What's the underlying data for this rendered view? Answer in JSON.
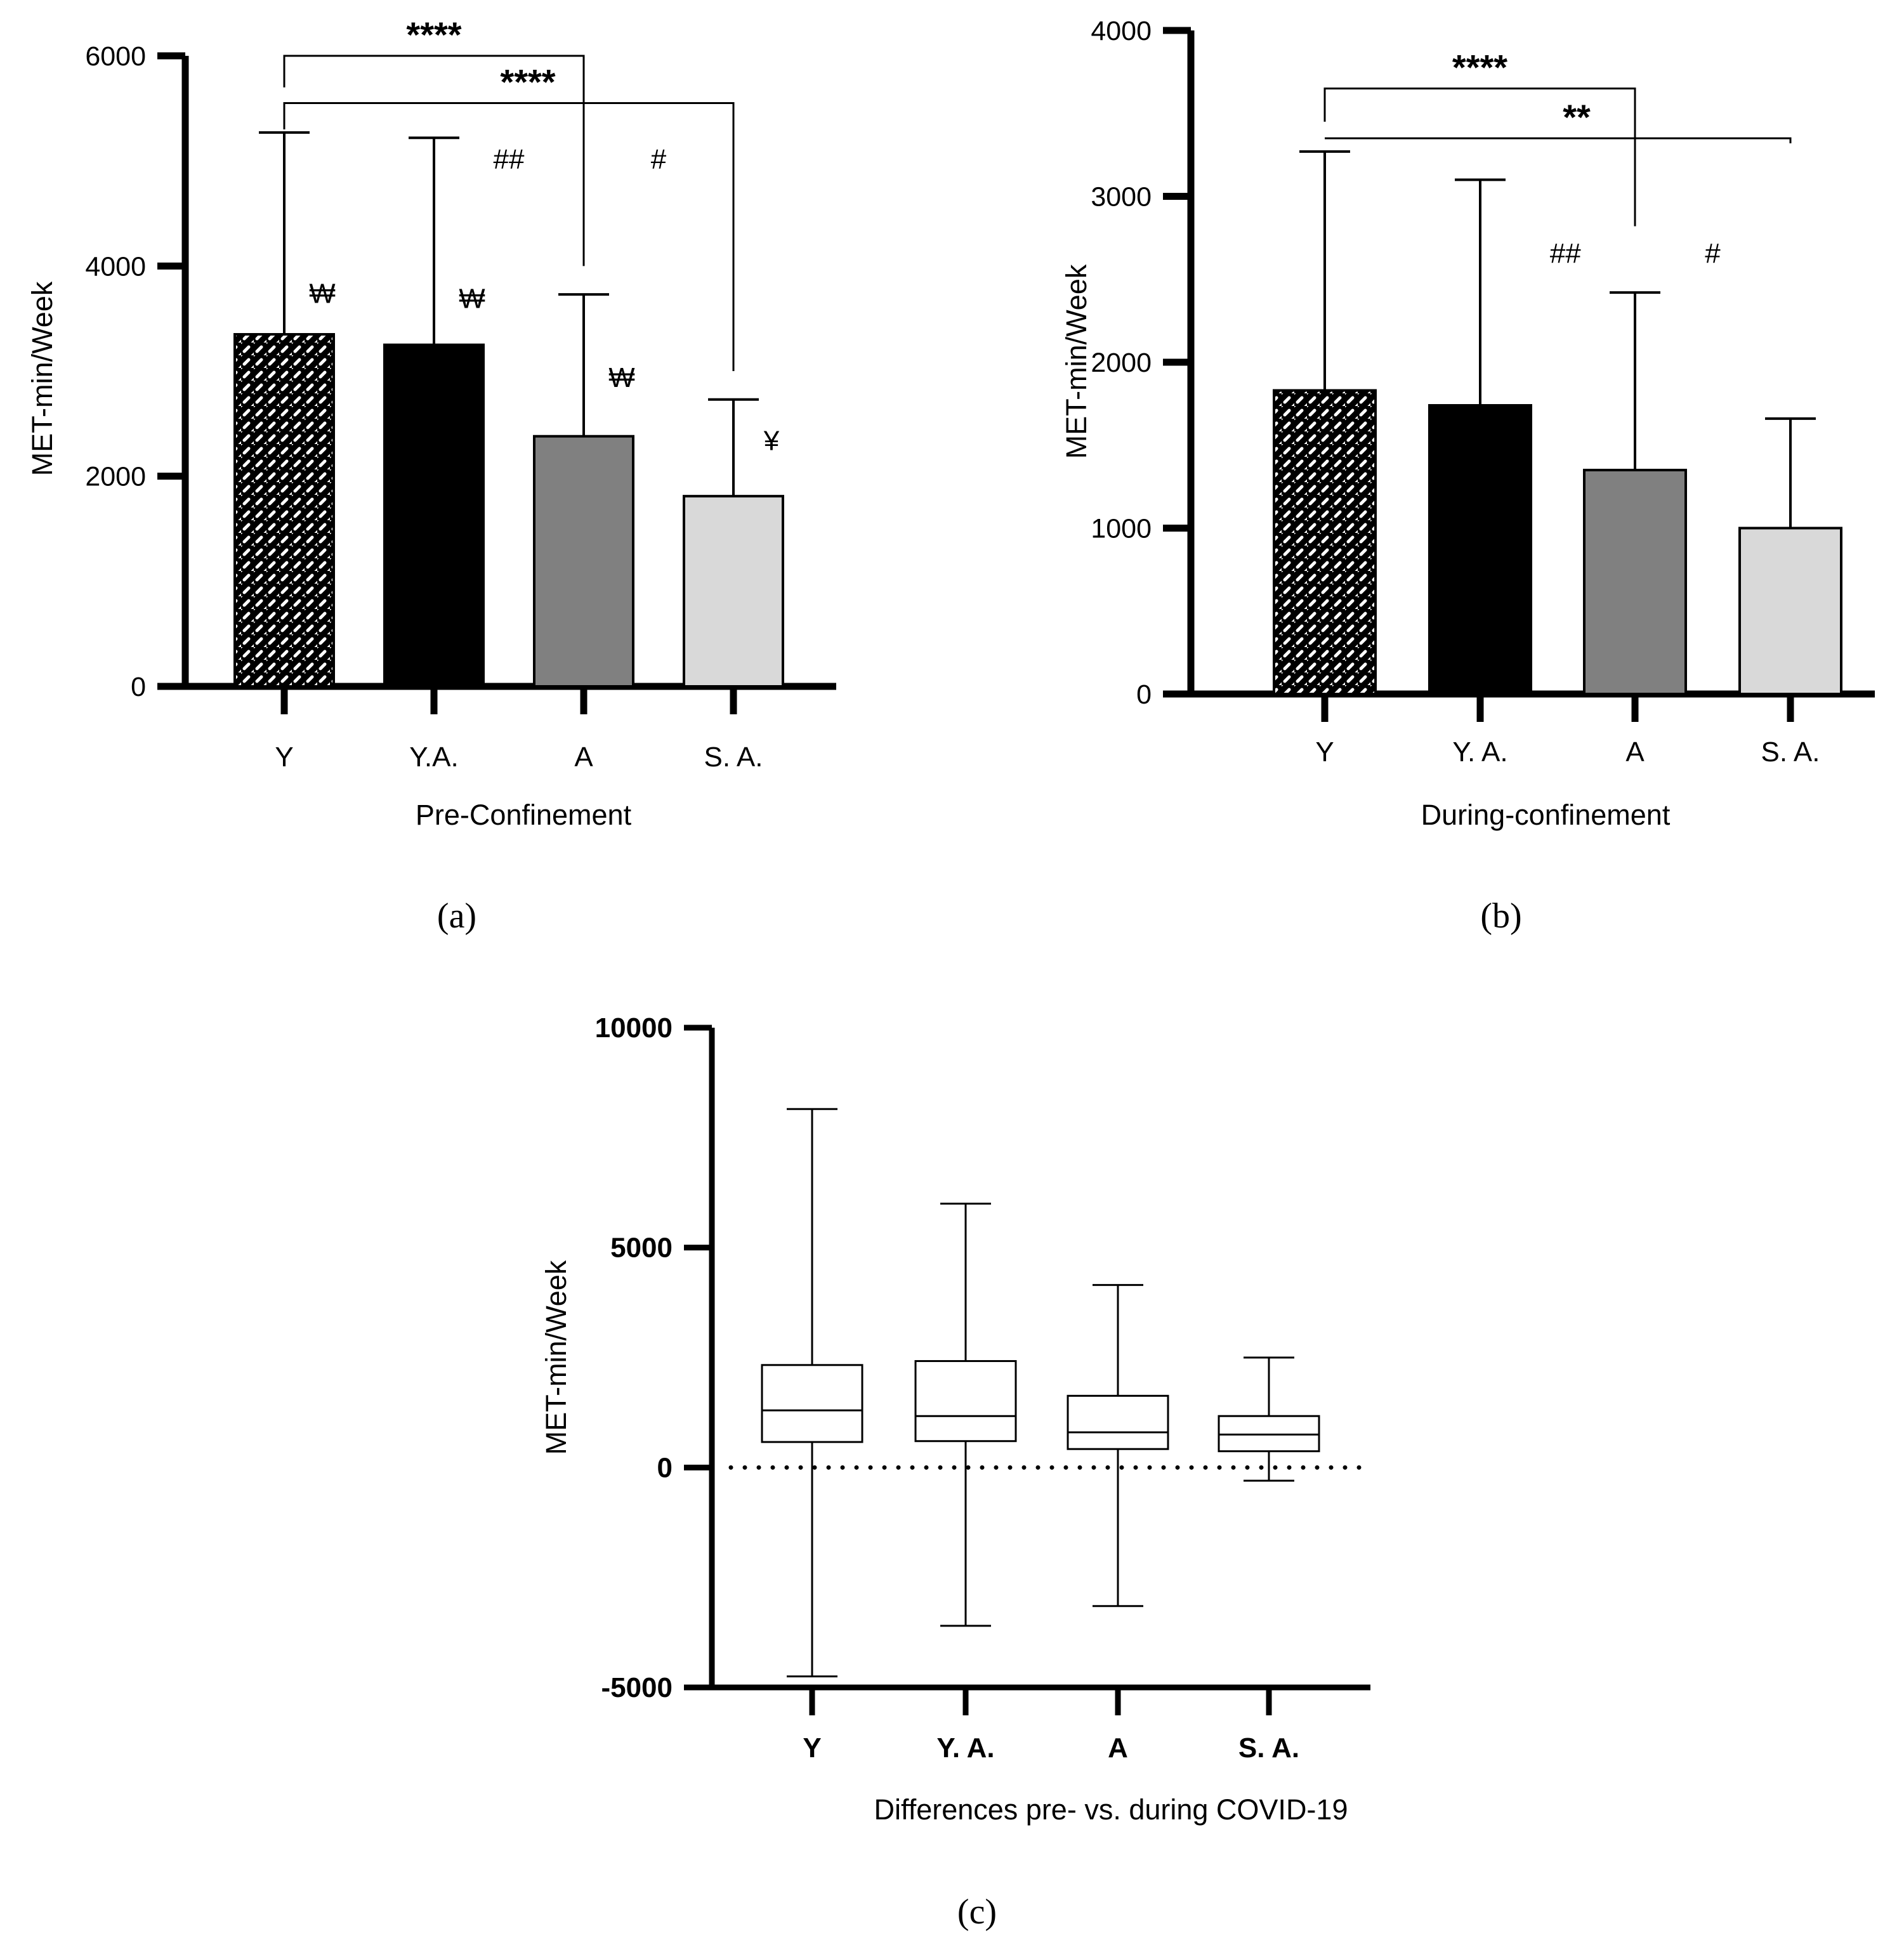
{
  "colors": {
    "axis": "#000000",
    "bar_Y_fill": "#ffffff",
    "bar_YA_fill": "#000000",
    "bar_A_fill": "#808080",
    "bar_SA_fill": "#d9d9d9",
    "box_fill": "#ffffff"
  },
  "chart_data": [
    {
      "id": "a",
      "type": "bar",
      "panel_label": "(a)",
      "xlabel": "Pre-Confinement",
      "ylabel": "MET-min/Week",
      "ylim": [
        0,
        6000
      ],
      "yticks": [
        "0",
        "2000",
        "4000",
        "6000"
      ],
      "ytick_values": [
        0,
        2000,
        4000,
        6000
      ],
      "categories": [
        "Y",
        "Y.A.",
        "A",
        "S. A."
      ],
      "values": [
        3350,
        3250,
        2380,
        1810
      ],
      "error_upper": [
        5270,
        5220,
        3730,
        2730
      ],
      "bar_styles": [
        "hatched",
        "black",
        "darkgray",
        "lightgray"
      ],
      "markers": [
        {
          "text": "₩",
          "category": 0,
          "value": 3650
        },
        {
          "text": "₩",
          "category": 1,
          "value": 3600
        },
        {
          "text": "₩",
          "category": 2,
          "value": 2850
        },
        {
          "text": "¥",
          "category": 3,
          "value": 2250
        },
        {
          "text": "##",
          "category": 1.5,
          "value": 4930
        },
        {
          "text": "#",
          "category": 2.5,
          "value": 4930
        }
      ],
      "brackets": [
        {
          "from": 0,
          "to": 2,
          "level": 6000,
          "from_drop": 5700,
          "to_drop": 4000,
          "label": "****"
        },
        {
          "from": 0,
          "to": 3,
          "level": 5550,
          "from_drop": 5300,
          "to_drop": 3000,
          "label": "****"
        }
      ]
    },
    {
      "id": "b",
      "type": "bar",
      "panel_label": "(b)",
      "xlabel": "During-confinement",
      "ylabel": "MET-min/Week",
      "ylim": [
        0,
        4000
      ],
      "yticks": [
        "0",
        "1000",
        "2000",
        "3000",
        "4000"
      ],
      "ytick_values": [
        0,
        1000,
        2000,
        3000,
        4000
      ],
      "categories": [
        "Y",
        "Y. A.",
        "A",
        "S. A."
      ],
      "values": [
        1830,
        1740,
        1350,
        1000
      ],
      "error_upper": [
        3270,
        3100,
        2420,
        1660
      ],
      "bar_styles": [
        "hatched",
        "black",
        "darkgray",
        "lightgray"
      ],
      "markers": [
        {
          "text": "##",
          "category": 1.55,
          "value": 2600
        },
        {
          "text": "#",
          "category": 2.5,
          "value": 2600
        }
      ],
      "brackets": [
        {
          "from": 0,
          "to": 2,
          "level": 3650,
          "from_drop": 3450,
          "to_drop": 2820,
          "label": "****"
        },
        {
          "from": 0,
          "to": 3,
          "level": 3350,
          "from_drop": 3350,
          "to_drop": 3320,
          "label": "**"
        }
      ]
    },
    {
      "id": "c",
      "type": "box",
      "panel_label": "(c)",
      "xlabel": "Differences pre- vs. during COVID-19",
      "ylabel": "MET-min/Week",
      "ylim": [
        -5000,
        10000
      ],
      "yticks": [
        "-5000",
        "0",
        "5000",
        "10000"
      ],
      "ytick_values": [
        -5000,
        0,
        5000,
        10000
      ],
      "categories": [
        "Y",
        "Y. A.",
        "A",
        "S. A."
      ],
      "reference_line": 0,
      "boxes": [
        {
          "min": -4750,
          "q1": 580,
          "median": 1300,
          "q3": 2330,
          "max": 8150
        },
        {
          "min": -3600,
          "q1": 600,
          "median": 1170,
          "q3": 2420,
          "max": 6000
        },
        {
          "min": -3150,
          "q1": 420,
          "median": 800,
          "q3": 1630,
          "max": 4150
        },
        {
          "min": -300,
          "q1": 370,
          "median": 750,
          "q3": 1170,
          "max": 2500
        }
      ]
    }
  ]
}
